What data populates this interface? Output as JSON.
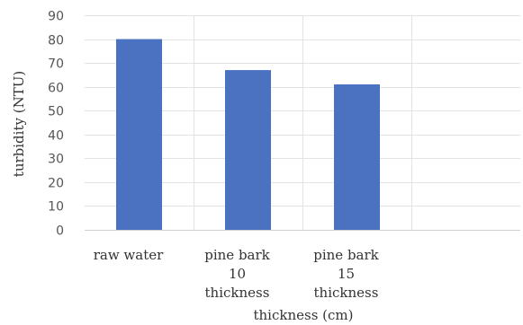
{
  "chart_data": {
    "type": "bar",
    "categories": [
      [
        "raw water"
      ],
      [
        "pine bark",
        "10",
        "thickness"
      ],
      [
        "pine bark",
        "15",
        "thickness"
      ],
      [
        ""
      ]
    ],
    "values": [
      80,
      67,
      61,
      null
    ],
    "xlabel": "thickness (cm)",
    "ylabel": "turbidity (NTU)",
    "ylim": [
      0,
      90
    ],
    "yticks": [
      0,
      10,
      20,
      30,
      40,
      50,
      60,
      70,
      80,
      90
    ],
    "grid": "horizontal and vertical",
    "bar_color": "#4a72c0"
  }
}
